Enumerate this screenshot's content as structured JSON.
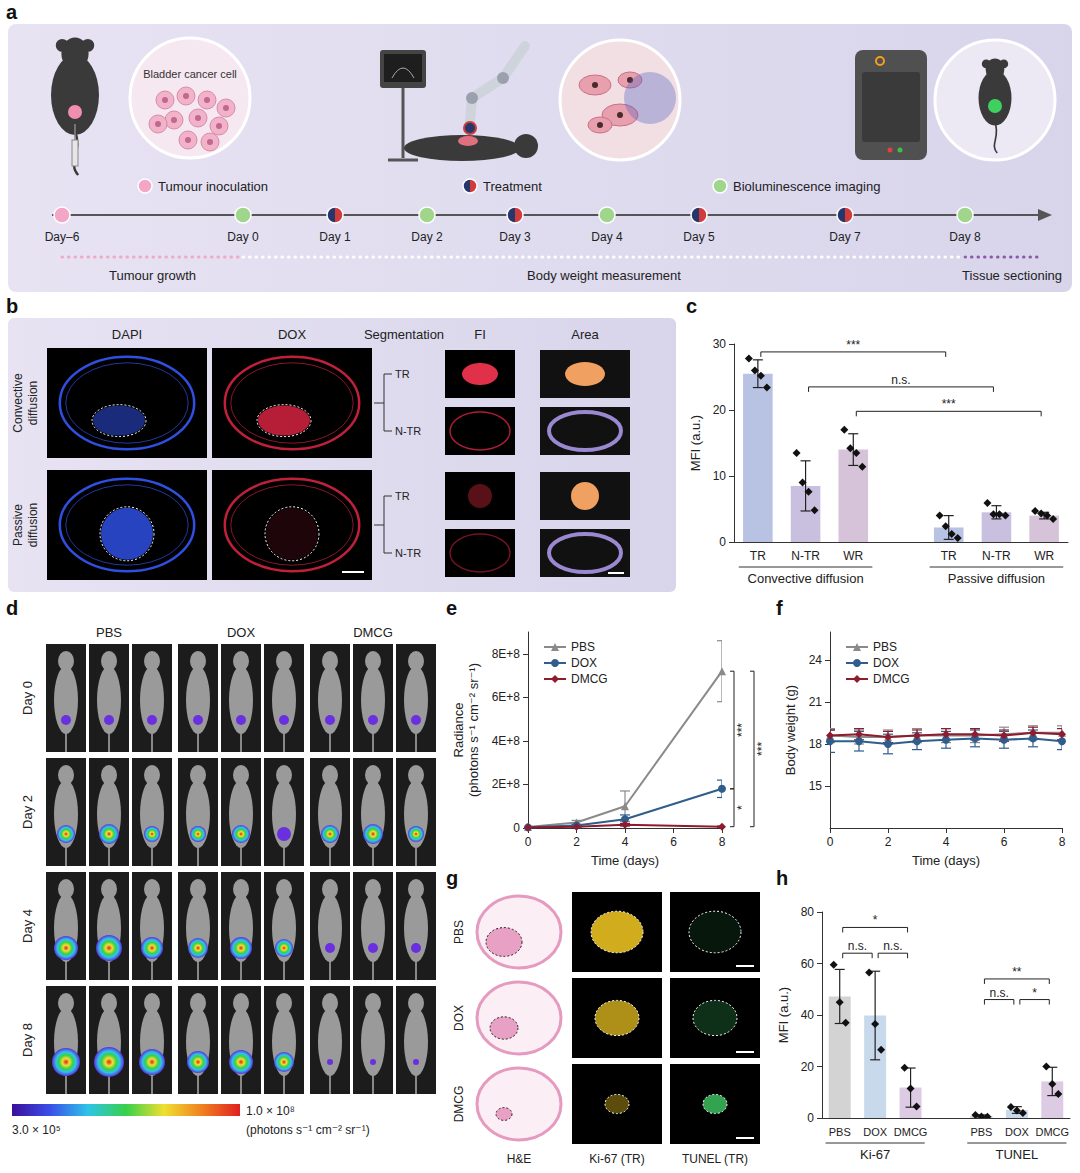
{
  "figure": {
    "a": {
      "letter": "a",
      "bubble_text": "Bladder cancer cell",
      "event_kinds": [
        {
          "kind": "inoculation",
          "label": "Tumour inoculation"
        },
        {
          "kind": "treatment",
          "label": "Treatment"
        },
        {
          "kind": "imaging",
          "label": "Bioluminescence imaging"
        }
      ],
      "timeline": [
        {
          "label": "Day–6",
          "kind": "inoculation"
        },
        {
          "label": "Day 0",
          "kind": "imaging"
        },
        {
          "label": "Day 1",
          "kind": "treatment"
        },
        {
          "label": "Day 2",
          "kind": "imaging"
        },
        {
          "label": "Day 3",
          "kind": "treatment"
        },
        {
          "label": "Day 4",
          "kind": "imaging"
        },
        {
          "label": "Day 5",
          "kind": "treatment"
        },
        {
          "label": "Day 7",
          "kind": "treatment"
        },
        {
          "label": "Day 8",
          "kind": "imaging"
        }
      ],
      "phases": [
        "Tumour growth",
        "Body weight measurement",
        "Tissue sectioning"
      ]
    },
    "b": {
      "letter": "b",
      "columns": [
        "DAPI",
        "DOX",
        "Segmentation",
        "FI",
        "Area"
      ],
      "rows": [
        "Convective diffusion",
        "Passive diffusion"
      ],
      "regions": [
        "TR",
        "N-TR"
      ]
    },
    "d": {
      "letter": "d",
      "groups": [
        "PBS",
        "DOX",
        "DMCG"
      ],
      "days": [
        "Day 0",
        "Day 2",
        "Day 4",
        "Day 8"
      ],
      "colorbar": {
        "min_label": "3.0 × 10⁵",
        "max_label": "1.0 × 10⁸",
        "unit": "(photons s⁻¹ cm⁻² sr⁻¹)"
      }
    },
    "g": {
      "letter": "g",
      "rows": [
        "PBS",
        "DOX",
        "DMCG"
      ],
      "columns": [
        "H&E",
        "Ki-67 (TR)",
        "TUNEL (TR)"
      ]
    }
  },
  "chart_data": [
    {
      "panel": "c",
      "type": "bar",
      "categories": [
        "TR",
        "N-TR",
        "WR",
        null,
        "TR",
        "N-TR",
        "WR"
      ],
      "group_labels": [
        "Convective diffusion",
        "Passive diffusion"
      ],
      "values": [
        25.5,
        8.5,
        14.0,
        null,
        2.2,
        4.5,
        4.0
      ],
      "errors": [
        2.1,
        3.8,
        2.4,
        null,
        1.8,
        1.0,
        0.5
      ],
      "points": [
        [
          27.8,
          26.0,
          25.2,
          23.4
        ],
        [
          13.5,
          9.0,
          7.6,
          4.8
        ],
        [
          17.0,
          14.2,
          13.5,
          11.4
        ],
        null,
        [
          4.0,
          2.4,
          1.2,
          0.6
        ],
        [
          5.9,
          4.2,
          4.2,
          4.0
        ],
        [
          4.7,
          4.3,
          4.0,
          3.5
        ]
      ],
      "colors": [
        "#b8c3e3",
        "#c9c0df",
        "#d7c3d9",
        null,
        "#b8c3e3",
        "#c9c0df",
        "#d7c3d9"
      ],
      "marker": "diamond",
      "ylabel": "MFI (a.u.)",
      "ylim": [
        0,
        30
      ],
      "yticks": [
        0,
        10,
        20,
        30
      ],
      "annotations": [
        {
          "from": 0,
          "to": 4,
          "y": 28.8,
          "label": "***"
        },
        {
          "from": 1,
          "to": 5,
          "y": 23.5,
          "label": "n.s."
        },
        {
          "from": 2,
          "to": 6,
          "y": 19.8,
          "label": "***"
        }
      ]
    },
    {
      "panel": "e",
      "type": "line",
      "x": [
        0,
        2,
        4,
        8
      ],
      "xlabel": "Time (days)",
      "ylabel": "Radiance (photons s⁻¹ cm⁻² sr⁻¹)",
      "xlim": [
        0,
        8
      ],
      "xticks": [
        0,
        2,
        4,
        6,
        8
      ],
      "ylim": [
        0,
        900000000
      ],
      "yticks": [
        0,
        {
          "value": 200000000,
          "label": "2E+8"
        },
        {
          "value": 400000000,
          "label": "4E+8"
        },
        {
          "value": 600000000,
          "label": "6E+8"
        },
        {
          "value": 800000000,
          "label": "8E+8"
        }
      ],
      "legend": "top-left",
      "series": [
        {
          "name": "PBS",
          "color": "#8a8a8a",
          "marker": "triangle",
          "values": [
            5000000,
            25000000,
            100000000,
            720000000
          ],
          "errors": [
            2000000,
            10000000,
            70000000,
            140000000
          ]
        },
        {
          "name": "DOX",
          "color": "#2f5d8c",
          "marker": "circle",
          "values": [
            3000000,
            12000000,
            40000000,
            180000000
          ],
          "errors": [
            1000000,
            5000000,
            20000000,
            40000000
          ]
        },
        {
          "name": "DMCG",
          "color": "#8e1b2e",
          "marker": "diamond",
          "values": [
            2000000,
            6000000,
            15000000,
            6000000
          ],
          "errors": [
            1000000,
            3000000,
            6000000,
            3000000
          ]
        }
      ],
      "annotations": [
        {
          "between": [
            "PBS",
            "DOX"
          ],
          "label": "***"
        },
        {
          "between": [
            "DOX",
            "DMCG"
          ],
          "label": "*"
        },
        {
          "between": [
            "PBS",
            "DMCG"
          ],
          "label": "***"
        }
      ]
    },
    {
      "panel": "f",
      "type": "line",
      "x": [
        0,
        1,
        2,
        3,
        4,
        5,
        6,
        7,
        8
      ],
      "xlabel": "Time (days)",
      "ylabel": "Body weight (g)",
      "xlim": [
        0,
        8
      ],
      "xticks": [
        0,
        2,
        4,
        6,
        8
      ],
      "ylim": [
        12,
        26
      ],
      "yticks": [
        15,
        18,
        21,
        24
      ],
      "legend": "top-left",
      "series": [
        {
          "name": "PBS",
          "color": "#8a8a8a",
          "marker": "triangle",
          "values": [
            18.6,
            18.5,
            18.5,
            18.6,
            18.6,
            18.6,
            18.7,
            18.8,
            18.8
          ],
          "errors": [
            0.5,
            0.5,
            0.5,
            0.5,
            0.5,
            0.5,
            0.5,
            0.5,
            0.5
          ]
        },
        {
          "name": "DOX",
          "color": "#2f5d8c",
          "marker": "circle",
          "values": [
            18.2,
            18.2,
            18.0,
            18.2,
            18.3,
            18.4,
            18.3,
            18.4,
            18.2
          ],
          "errors": [
            0.8,
            0.7,
            0.7,
            0.6,
            0.6,
            0.6,
            0.6,
            0.6,
            0.6
          ]
        },
        {
          "name": "DMCG",
          "color": "#8e1b2e",
          "marker": "diamond",
          "values": [
            18.6,
            18.7,
            18.5,
            18.6,
            18.7,
            18.7,
            18.6,
            18.8,
            18.7
          ],
          "errors": [
            0.4,
            0.4,
            0.4,
            0.4,
            0.4,
            0.4,
            0.4,
            0.4,
            0.4
          ]
        }
      ]
    },
    {
      "panel": "h",
      "type": "bar",
      "categories": [
        "PBS",
        "DOX",
        "DMCG",
        null,
        "PBS",
        "DOX",
        "DMCG"
      ],
      "group_labels": [
        "Ki-67",
        "TUNEL"
      ],
      "values": [
        47.2,
        39.8,
        11.8,
        null,
        0.8,
        3.1,
        14.2
      ],
      "errors": [
        10.5,
        17.2,
        7.6,
        null,
        0.4,
        1.3,
        5.5
      ],
      "points": [
        [
          59.5,
          45.0,
          37.0
        ],
        [
          56.5,
          36.5,
          26.5
        ],
        [
          19.5,
          11.5,
          4.5
        ],
        null,
        [
          1.2,
          0.6,
          0.5
        ],
        [
          4.3,
          2.9,
          1.9
        ],
        [
          20.0,
          13.2,
          9.3
        ]
      ],
      "colors": [
        "#d3d3d3",
        "#c8d9ec",
        "#dccbe3",
        null,
        "#d3d3d3",
        "#c8d9ec",
        "#dccbe3"
      ],
      "marker": "diamond",
      "ylabel": "MFI (a.u.)",
      "ylim": [
        0,
        80
      ],
      "yticks": [
        0,
        20,
        40,
        60,
        80
      ],
      "annotations": [
        {
          "from": 0,
          "to": 1,
          "y": 64,
          "label": "n.s."
        },
        {
          "from": 1,
          "to": 2,
          "y": 64,
          "label": "n.s."
        },
        {
          "from": 0,
          "to": 2,
          "y": 74,
          "label": "*"
        },
        {
          "from": 4,
          "to": 5,
          "y": 46,
          "label": "n.s."
        },
        {
          "from": 5,
          "to": 6,
          "y": 46,
          "label": "*"
        },
        {
          "from": 4,
          "to": 6,
          "y": 54,
          "label": "**"
        }
      ]
    }
  ]
}
